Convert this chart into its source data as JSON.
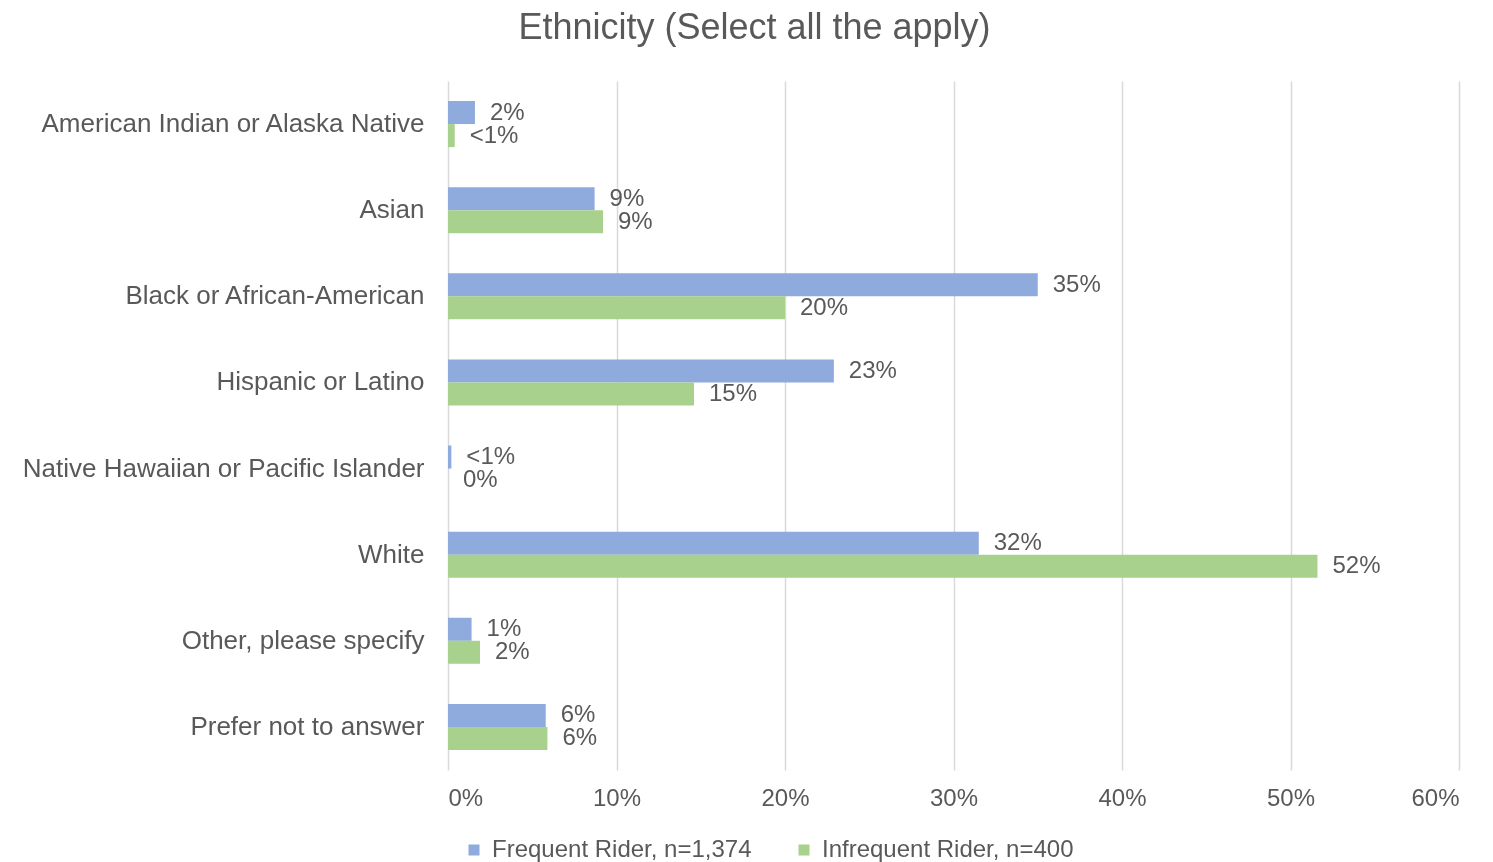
{
  "chart_data": {
    "type": "bar",
    "title": "Ethnicity (Select all the apply)",
    "orientation": "horizontal",
    "categories": [
      "American Indian or Alaska Native",
      "Asian",
      "Black or African-American",
      "Hispanic or Latino",
      "Native Hawaiian or Pacific Islander",
      "White",
      "Other, please specify",
      "Prefer not to answer"
    ],
    "series": [
      {
        "name": "Frequent Rider, n=1,374",
        "color": "#8faadc",
        "values": [
          1.6,
          8.7,
          35.0,
          22.9,
          0.2,
          31.5,
          1.4,
          5.8
        ],
        "value_labels": [
          "2%",
          "9%",
          "35%",
          "23%",
          "<1%",
          "32%",
          "1%",
          "6%"
        ]
      },
      {
        "name": "Infrequent Rider, n=400",
        "color": "#a9d18e",
        "values": [
          0.4,
          9.2,
          20.0,
          14.6,
          0,
          51.6,
          1.9,
          5.9
        ],
        "value_labels": [
          "<1%",
          "9%",
          "20%",
          "15%",
          "0%",
          "52%",
          "2%",
          "6%"
        ]
      }
    ],
    "xlim": [
      0,
      60
    ],
    "xticks": [
      {
        "value": 0,
        "label": "0%"
      },
      {
        "value": 10,
        "label": "10%"
      },
      {
        "value": 20,
        "label": "20%"
      },
      {
        "value": 30,
        "label": "30%"
      },
      {
        "value": 40,
        "label": "40%"
      },
      {
        "value": 50,
        "label": "50%"
      },
      {
        "value": 60,
        "label": "60%"
      }
    ],
    "grid": "x",
    "legend": "bottom"
  }
}
